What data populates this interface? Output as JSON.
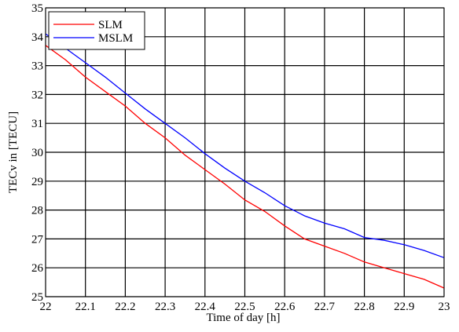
{
  "chart_data": {
    "type": "line",
    "xlabel": "Time of day  [h]",
    "ylabel": "TECv in [TECU]",
    "xlim": [
      22,
      23
    ],
    "ylim": [
      25,
      35
    ],
    "xticks": [
      22,
      22.1,
      22.2,
      22.3,
      22.4,
      22.5,
      22.6,
      22.7,
      22.8,
      22.9,
      23
    ],
    "yticks": [
      25,
      26,
      27,
      28,
      29,
      30,
      31,
      32,
      33,
      34,
      35
    ],
    "x_tick_labels": [
      "22",
      "22.1",
      "22.2",
      "22.3",
      "22.4",
      "22.5",
      "22.6",
      "22.7",
      "22.8",
      "22.9",
      "23"
    ],
    "y_tick_labels": [
      "25",
      "26",
      "27",
      "28",
      "29",
      "30",
      "31",
      "32",
      "33",
      "34",
      "35"
    ],
    "grid": true,
    "legend_position": "top-left",
    "series": [
      {
        "name": "SLM",
        "color": "#ff0000",
        "x": [
          22,
          22.05,
          22.1,
          22.15,
          22.2,
          22.25,
          22.3,
          22.35,
          22.4,
          22.45,
          22.5,
          22.55,
          22.6,
          22.65,
          22.7,
          22.75,
          22.8,
          22.85,
          22.9,
          22.95,
          23
        ],
        "y": [
          33.7,
          33.2,
          32.6,
          32.1,
          31.6,
          31.0,
          30.5,
          29.9,
          29.4,
          28.9,
          28.35,
          27.95,
          27.45,
          27.0,
          26.75,
          26.5,
          26.2,
          26.0,
          25.8,
          25.6,
          25.3
        ]
      },
      {
        "name": "MSLM",
        "color": "#0000ff",
        "x": [
          22,
          22.05,
          22.1,
          22.15,
          22.2,
          22.25,
          22.3,
          22.35,
          22.4,
          22.45,
          22.5,
          22.55,
          22.6,
          22.65,
          22.7,
          22.75,
          22.8,
          22.85,
          22.9,
          22.95,
          23
        ],
        "y": [
          34.1,
          33.6,
          33.1,
          32.6,
          32.05,
          31.5,
          31.0,
          30.5,
          29.95,
          29.45,
          29.0,
          28.6,
          28.15,
          27.8,
          27.55,
          27.35,
          27.05,
          26.95,
          26.8,
          26.6,
          26.35
        ]
      }
    ]
  }
}
